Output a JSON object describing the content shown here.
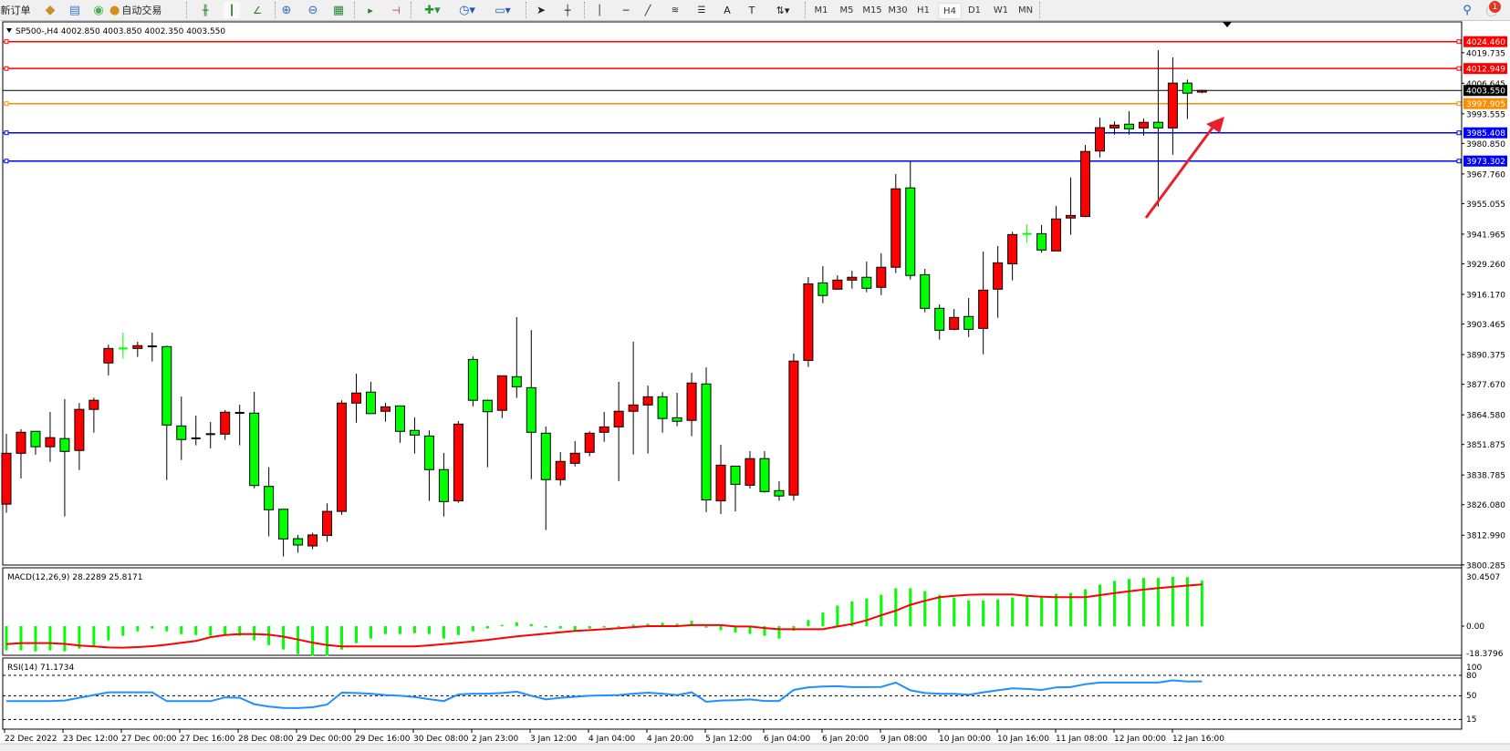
{
  "toolbar": {
    "new_order": "新订单",
    "auto_trading": "自动交易",
    "timeframes": [
      "M1",
      "M5",
      "M15",
      "M30",
      "H1",
      "H4",
      "D1",
      "W1",
      "MN"
    ],
    "active_timeframe": "H4",
    "notification_count": "1",
    "icons": [
      "orders-icon",
      "data-window-icon",
      "signals-icon",
      "auto-trading-icon",
      "bar-chart-icon",
      "candlestick-icon",
      "line-chart-icon",
      "zoom-in-icon",
      "zoom-out-icon",
      "tile-windows-icon",
      "autoscroll-icon",
      "chart-shift-icon",
      "indicators-icon",
      "periods-icon",
      "templates-icon",
      "cursor-icon",
      "crosshair-icon",
      "vertical-line-icon",
      "horizontal-line-icon",
      "trendline-icon",
      "fibonacci-expansion-icon",
      "fibonacci-fan-icon",
      "text-icon",
      "text-label-icon",
      "arrows-icon",
      "search-icon",
      "notification-icon"
    ]
  },
  "chart": {
    "header": "SP500-,H4  4002.850 4003.850 4002.350 4003.550",
    "bid": "4003.550",
    "bid_color": "#000000",
    "colors": {
      "up_candle": "#ff0000",
      "down_candle": "#00ff00",
      "doji": "#000000",
      "macd_hist": "#00ff00",
      "signal": "#ff0000",
      "rsi": "#1e90ff"
    },
    "price_axis": [
      "4019.735",
      "4006.645",
      "3993.555",
      "3980.850",
      "3967.760",
      "3955.055",
      "3941.965",
      "3929.260",
      "3916.170",
      "3903.465",
      "3890.375",
      "3877.670",
      "3864.580",
      "3851.875",
      "3838.785",
      "3826.080",
      "3812.990",
      "3800.285"
    ],
    "hlines": [
      {
        "price": "4024.460",
        "color": "#ff0000"
      },
      {
        "price": "4012.949",
        "color": "#ff0000"
      },
      {
        "price": "3997.905",
        "color": "#ff8c00"
      },
      {
        "price": "3985.408",
        "color": "#0000ff"
      },
      {
        "price": "3973.302",
        "color": "#0000ff"
      }
    ],
    "time_axis": [
      "22 Dec 2022",
      "23 Dec 12:00",
      "27 Dec 00:00",
      "27 Dec 16:00",
      "28 Dec 08:00",
      "29 Dec 00:00",
      "29 Dec 16:00",
      "30 Dec 08:00",
      "2 Jan 23:00",
      "3 Jan 12:00",
      "4 Jan 04:00",
      "4 Jan 20:00",
      "5 Jan 12:00",
      "6 Jan 04:00",
      "6 Jan 20:00",
      "9 Jan 08:00",
      "10 Jan 00:00",
      "10 Jan 16:00",
      "11 Jan 08:00",
      "12 Jan 00:00",
      "12 Jan 16:00"
    ],
    "macd_label": "MACD(12,26,9) 28.2289 25.8171",
    "macd_axis": [
      "30.4507",
      "0.00",
      "-18.3796"
    ],
    "rsi_label": "RSI(14) 71.1734",
    "rsi_axis": [
      "100",
      "80",
      "50",
      "15"
    ],
    "rsi_levels": [
      80,
      50,
      15
    ]
  },
  "chart_data": {
    "type": "candlestick",
    "symbol": "SP500-",
    "timeframe": "H4",
    "ylim": [
      3800.285,
      4024.46
    ],
    "ohlc": [
      [
        3826.3,
        3856.4,
        3822.6,
        3848.1
      ],
      [
        3848.1,
        3858.4,
        3837.3,
        3857.1
      ],
      [
        3857.5,
        3857.6,
        3847.5,
        3850.9
      ],
      [
        3850.9,
        3865.8,
        3844.4,
        3854.8
      ],
      [
        3854.4,
        3871.3,
        3821.0,
        3848.9
      ],
      [
        3849.3,
        3869.6,
        3840.9,
        3866.9
      ],
      [
        3866.9,
        3871.9,
        3856.9,
        3870.8
      ],
      [
        3886.8,
        3894.6,
        3881.5,
        3893.0
      ],
      [
        3893.0,
        3899.8,
        3888.7,
        3892.9
      ],
      [
        3893.0,
        3895.9,
        3889.4,
        3894.2
      ],
      [
        3893.9,
        3899.8,
        3887.4,
        3893.9
      ],
      [
        3893.8,
        3894.2,
        3836.6,
        3860.2
      ],
      [
        3859.8,
        3872.4,
        3845.2,
        3854.0
      ],
      [
        3854.5,
        3864.2,
        3851.5,
        3854.5
      ],
      [
        3856.3,
        3861.5,
        3850.2,
        3856.3
      ],
      [
        3856.3,
        3866.6,
        3853.8,
        3865.7
      ],
      [
        3865.4,
        3868.9,
        3851.5,
        3865.4
      ],
      [
        3865.3,
        3874.4,
        3833.1,
        3834.3
      ],
      [
        3833.9,
        3842.1,
        3812.5,
        3823.9
      ],
      [
        3824.1,
        3824.1,
        3803.9,
        3811.4
      ],
      [
        3811.5,
        3813.1,
        3805.5,
        3808.8
      ],
      [
        3808.4,
        3814.0,
        3807.0,
        3813.1
      ],
      [
        3812.9,
        3826.6,
        3810.2,
        3823.2
      ],
      [
        3823.2,
        3870.8,
        3821.7,
        3869.6
      ],
      [
        3869.6,
        3882.2,
        3861.2,
        3873.9
      ],
      [
        3874.3,
        3878.7,
        3864.9,
        3865.1
      ],
      [
        3866.1,
        3869.7,
        3861.6,
        3868.0
      ],
      [
        3868.4,
        3868.4,
        3852.6,
        3857.5
      ],
      [
        3857.9,
        3863.5,
        3848.0,
        3855.9
      ],
      [
        3855.5,
        3857.9,
        3827.7,
        3841.1
      ],
      [
        3841.1,
        3848.2,
        3821.0,
        3827.4
      ],
      [
        3827.7,
        3861.9,
        3826.9,
        3860.6
      ],
      [
        3888.3,
        3889.6,
        3868.2,
        3870.8
      ],
      [
        3870.8,
        3871.1,
        3842.1,
        3865.9
      ],
      [
        3866.5,
        3881.3,
        3863.2,
        3881.3
      ],
      [
        3880.9,
        3906.4,
        3871.8,
        3876.6
      ],
      [
        3876.2,
        3900.9,
        3837.0,
        3857.1
      ],
      [
        3856.7,
        3859.6,
        3815.2,
        3836.8
      ],
      [
        3836.8,
        3848.6,
        3834.3,
        3844.6
      ],
      [
        3843.8,
        3853.3,
        3842.5,
        3848.1
      ],
      [
        3848.5,
        3857.5,
        3846.8,
        3856.7
      ],
      [
        3857.1,
        3865.8,
        3853.0,
        3859.4
      ],
      [
        3859.4,
        3878.7,
        3836.2,
        3866.1
      ],
      [
        3866.1,
        3895.9,
        3847.6,
        3868.8
      ],
      [
        3868.8,
        3877.1,
        3848.0,
        3872.3
      ],
      [
        3872.3,
        3874.3,
        3856.9,
        3863.0
      ],
      [
        3863.3,
        3874.0,
        3859.7,
        3861.8
      ],
      [
        3862.2,
        3882.6,
        3855.4,
        3878.2
      ],
      [
        3877.8,
        3884.9,
        3822.9,
        3828.1
      ],
      [
        3827.7,
        3851.7,
        3822.1,
        3843.0
      ],
      [
        3842.6,
        3842.6,
        3823.2,
        3834.8
      ],
      [
        3834.4,
        3849.0,
        3833.0,
        3845.8
      ],
      [
        3845.8,
        3849.0,
        3831.2,
        3831.7
      ],
      [
        3832.1,
        3836.1,
        3827.8,
        3829.8
      ],
      [
        3830.2,
        3890.8,
        3827.8,
        3887.6
      ],
      [
        3887.9,
        3923.6,
        3885.1,
        3920.7
      ],
      [
        3921.1,
        3928.3,
        3912.4,
        3915.7
      ],
      [
        3918.4,
        3924.4,
        3918.4,
        3922.3
      ],
      [
        3922.3,
        3926.3,
        3918.6,
        3923.5
      ],
      [
        3923.5,
        3930.2,
        3917.1,
        3918.8
      ],
      [
        3919.2,
        3933.8,
        3915.9,
        3927.8
      ],
      [
        3927.8,
        3967.7,
        3925.3,
        3961.4
      ],
      [
        3961.8,
        3973.3,
        3922.5,
        3924.3
      ],
      [
        3924.6,
        3927.1,
        3908.5,
        3910.2
      ],
      [
        3910.2,
        3911.9,
        3896.8,
        3900.8
      ],
      [
        3901.2,
        3909.9,
        3900.8,
        3906.3
      ],
      [
        3906.7,
        3914.6,
        3897.9,
        3901.2
      ],
      [
        3901.6,
        3934.5,
        3890.5,
        3918.0
      ],
      [
        3918.4,
        3936.9,
        3906.1,
        3929.7
      ],
      [
        3929.3,
        3943.0,
        3922.2,
        3941.8
      ],
      [
        3942.1,
        3946.2,
        3938.4,
        3942.0
      ],
      [
        3942.2,
        3945.9,
        3934.0,
        3935.2
      ],
      [
        3934.8,
        3954.1,
        3934.8,
        3948.5
      ],
      [
        3948.9,
        3966.3,
        3941.7,
        3950.0
      ],
      [
        3949.6,
        3980.2,
        3949.2,
        3977.4
      ],
      [
        3977.6,
        3991.9,
        3974.9,
        3987.6
      ],
      [
        3987.5,
        3990.3,
        3984.6,
        3988.7
      ],
      [
        3989.1,
        3994.7,
        3984.6,
        3987.1
      ],
      [
        3987.5,
        3991.5,
        3984.2,
        3989.9
      ],
      [
        3989.9,
        4020.8,
        3953.8,
        3987.5
      ],
      [
        3987.5,
        4017.7,
        3976.0,
        4006.7
      ],
      [
        4006.7,
        4008.2,
        3991.3,
        4002.4
      ],
      [
        4002.85,
        4003.85,
        4002.35,
        4003.55
      ]
    ],
    "macd": {
      "ylim": [
        -18.3796,
        30.4507
      ],
      "histogram": [
        -15.0,
        -15.0,
        -15.6,
        -15.0,
        -15.6,
        -13.9,
        -12.2,
        -8.8,
        -6.0,
        -3.2,
        -1.5,
        -3.2,
        -4.9,
        -5.5,
        -6.0,
        -6.0,
        -6.0,
        -8.8,
        -11.7,
        -14.5,
        -17.3,
        -18.4,
        -18.4,
        -14.5,
        -10.5,
        -7.7,
        -4.9,
        -4.9,
        -4.3,
        -4.9,
        -7.7,
        -5.5,
        -3.2,
        -1.5,
        0.75,
        2.4,
        1.3,
        -0.9,
        -1.5,
        -2.6,
        -1.5,
        -0.9,
        -0.4,
        1.0,
        1.5,
        2.1,
        1.5,
        3.3,
        -1.0,
        -2.5,
        -4.0,
        -4.8,
        -6.0,
        -7.7,
        -2.9,
        3.8,
        8.4,
        12.7,
        15.4,
        17.1,
        19.4,
        23.4,
        23.4,
        21.7,
        19.4,
        17.7,
        15.9,
        15.9,
        16.5,
        17.7,
        18.2,
        17.7,
        20.0,
        20.5,
        22.8,
        25.7,
        28.0,
        29.2,
        29.8,
        29.8,
        30.45,
        30.3,
        28.23
      ],
      "signal": [
        -11.1,
        -10.5,
        -10.5,
        -10.5,
        -11.0,
        -12.0,
        -12.6,
        -13.2,
        -13.3,
        -13.0,
        -12.4,
        -11.5,
        -10.3,
        -9.2,
        -6.8,
        -5.5,
        -4.9,
        -4.9,
        -5.3,
        -6.5,
        -8.3,
        -10.2,
        -11.7,
        -12.6,
        -12.6,
        -12.6,
        -12.6,
        -12.6,
        -12.6,
        -11.9,
        -11.1,
        -10.3,
        -9.5,
        -8.5,
        -7.4,
        -6.4,
        -5.5,
        -4.6,
        -3.8,
        -3.0,
        -2.5,
        -1.9,
        -1.3,
        -0.6,
        0.0,
        0.0,
        0.0,
        0.6,
        0.6,
        0.6,
        -0.2,
        -0.2,
        -1.2,
        -1.9,
        -1.9,
        -1.9,
        -1.9,
        -0.2,
        1.3,
        3.6,
        6.7,
        9.6,
        13.2,
        15.7,
        17.9,
        18.8,
        19.4,
        19.6,
        19.6,
        19.6,
        18.8,
        18.2,
        17.9,
        17.9,
        17.9,
        19.2,
        20.4,
        21.6,
        22.6,
        23.5,
        24.3,
        25.1,
        25.82
      ]
    },
    "rsi": {
      "ylim": [
        0,
        100
      ],
      "values": [
        42,
        42,
        42,
        42,
        43,
        47,
        51,
        55,
        55,
        55,
        55,
        42,
        42,
        42,
        42,
        47.5,
        47,
        37.5,
        34,
        32,
        31.7,
        33,
        37,
        54.5,
        54,
        53,
        51,
        50,
        48,
        45,
        42,
        52,
        53,
        53,
        54,
        56,
        50,
        44.5,
        47,
        48.5,
        50,
        50.5,
        51,
        53,
        54.5,
        53,
        51,
        55,
        41,
        43,
        43.5,
        44.5,
        42.3,
        42.3,
        58.6,
        62.5,
        63.5,
        64,
        62.7,
        62.7,
        63,
        69.5,
        58,
        54,
        53,
        52.7,
        51.4,
        55,
        58,
        61,
        60,
        58.6,
        62.3,
        62.7,
        67,
        69.5,
        69.5,
        69.5,
        69.5,
        69.5,
        72.7,
        70.9,
        71.17
      ]
    }
  }
}
